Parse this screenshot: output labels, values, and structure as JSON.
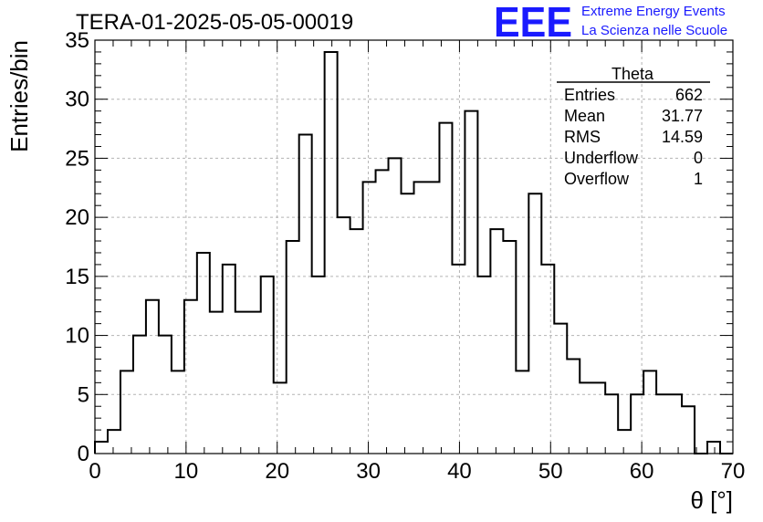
{
  "header": {
    "title": "TERA-01-2025-05-05-00019",
    "logo_text": "EEE",
    "logo_line1": "Extreme Energy Events",
    "logo_line2": "La Scienza nelle Scuole",
    "logo_color": "#1a1aff"
  },
  "stats": {
    "name": "Theta",
    "rows": [
      {
        "label": "Entries",
        "value": "662"
      },
      {
        "label": "Mean",
        "value": "31.77"
      },
      {
        "label": "RMS",
        "value": "14.59"
      },
      {
        "label": "Underflow",
        "value": "0"
      },
      {
        "label": "Overflow",
        "value": "1"
      }
    ]
  },
  "chart_data": {
    "type": "bar",
    "histogram": true,
    "xlabel": "θ [°]",
    "ylabel": "Entries/bin",
    "xlim": [
      0,
      70
    ],
    "ylim": [
      0,
      35
    ],
    "bin_width": 1.4,
    "bin_edges_start": 0,
    "values": [
      1,
      2,
      7,
      10,
      13,
      10,
      7,
      13,
      17,
      12,
      16,
      12,
      12,
      15,
      6,
      18,
      27,
      15,
      34,
      20,
      19,
      23,
      24,
      25,
      22,
      23,
      23,
      28,
      16,
      29,
      15,
      19,
      18,
      7,
      22,
      16,
      11,
      8,
      6,
      6,
      5,
      2,
      5,
      7,
      5,
      5,
      4,
      0,
      1,
      0
    ],
    "x_ticks": [
      "0",
      "10",
      "20",
      "30",
      "40",
      "50",
      "60",
      "70"
    ],
    "y_ticks": [
      "0",
      "5",
      "10",
      "15",
      "20",
      "25",
      "30",
      "35"
    ],
    "grid": true,
    "line_color": "#000000",
    "grid_color": "#b3b3b3"
  }
}
